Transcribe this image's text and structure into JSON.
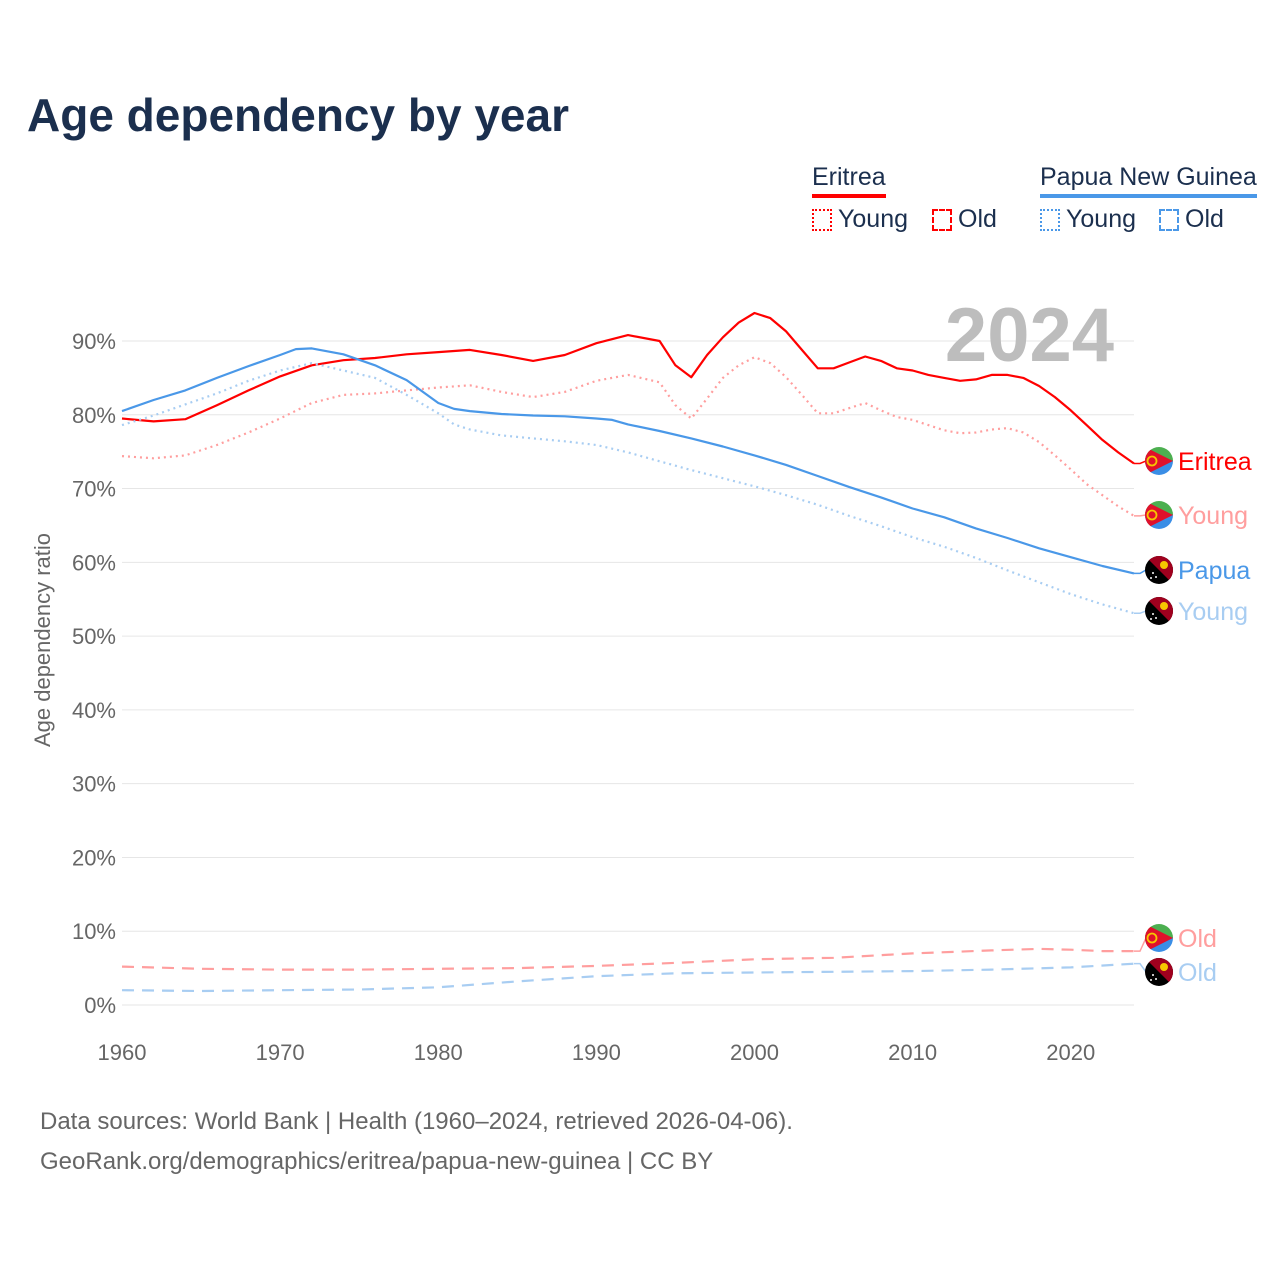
{
  "title": "Age dependency by year",
  "year_label": "2024",
  "legend": {
    "groups": [
      {
        "name": "Eritrea",
        "color": "#ff0000",
        "items": [
          "Young",
          "Old"
        ]
      },
      {
        "name": "Papua New Guinea",
        "color": "#4a98e8",
        "items": [
          "Young",
          "Old"
        ]
      }
    ]
  },
  "footer": {
    "line1": "Data sources: World Bank | Health (1960–2024, retrieved 2026-04-06).",
    "line2": "GeoRank.org/demographics/eritrea/papua-new-guinea | CC BY"
  },
  "chart_data": {
    "type": "line",
    "title": "Age dependency by year",
    "ylabel": "Age dependency ratio",
    "xlabel": "",
    "xlim": [
      1960,
      2024
    ],
    "ylim": [
      0,
      90
    ],
    "xticks": [
      "1960",
      "1970",
      "1980",
      "1990",
      "2000",
      "2010",
      "2020"
    ],
    "yticks": [
      "0%",
      "10%",
      "20%",
      "30%",
      "40%",
      "50%",
      "60%",
      "70%",
      "80%",
      "90%"
    ],
    "grid": true,
    "legend_position": "top-right",
    "series": [
      {
        "name": "Eritrea",
        "label": "Eritrea",
        "color": "#ff0000",
        "style": "solid",
        "points": [
          [
            1960,
            79.5
          ],
          [
            1962,
            79.1
          ],
          [
            1964,
            79.4
          ],
          [
            1966,
            81.3
          ],
          [
            1968,
            83.3
          ],
          [
            1970,
            85.2
          ],
          [
            1972,
            86.7
          ],
          [
            1974,
            87.4
          ],
          [
            1976,
            87.7
          ],
          [
            1978,
            88.2
          ],
          [
            1980,
            88.5
          ],
          [
            1982,
            88.8
          ],
          [
            1984,
            88.1
          ],
          [
            1986,
            87.3
          ],
          [
            1988,
            88.1
          ],
          [
            1990,
            89.7
          ],
          [
            1992,
            90.8
          ],
          [
            1994,
            90.0
          ],
          [
            1995,
            86.7
          ],
          [
            1996,
            85.1
          ],
          [
            1997,
            88.1
          ],
          [
            1998,
            90.5
          ],
          [
            1999,
            92.5
          ],
          [
            2000,
            93.8
          ],
          [
            2001,
            93.1
          ],
          [
            2002,
            91.3
          ],
          [
            2003,
            88.8
          ],
          [
            2004,
            86.3
          ],
          [
            2005,
            86.3
          ],
          [
            2006,
            87.1
          ],
          [
            2007,
            87.9
          ],
          [
            2008,
            87.3
          ],
          [
            2009,
            86.3
          ],
          [
            2010,
            86.0
          ],
          [
            2011,
            85.4
          ],
          [
            2012,
            85.0
          ],
          [
            2013,
            84.6
          ],
          [
            2014,
            84.8
          ],
          [
            2015,
            85.4
          ],
          [
            2016,
            85.4
          ],
          [
            2017,
            85.0
          ],
          [
            2018,
            83.9
          ],
          [
            2019,
            82.4
          ],
          [
            2020,
            80.6
          ],
          [
            2021,
            78.6
          ],
          [
            2022,
            76.6
          ],
          [
            2023,
            74.9
          ],
          [
            2024,
            73.4
          ]
        ]
      },
      {
        "name": "Eritrea Young",
        "label": "Young",
        "color": "#ff9e9e",
        "style": "dotted",
        "points": [
          [
            1960,
            74.4
          ],
          [
            1962,
            74.1
          ],
          [
            1964,
            74.5
          ],
          [
            1966,
            75.9
          ],
          [
            1968,
            77.6
          ],
          [
            1970,
            79.5
          ],
          [
            1972,
            81.6
          ],
          [
            1974,
            82.7
          ],
          [
            1976,
            82.9
          ],
          [
            1978,
            83.3
          ],
          [
            1980,
            83.7
          ],
          [
            1982,
            84.0
          ],
          [
            1984,
            83.1
          ],
          [
            1986,
            82.4
          ],
          [
            1988,
            83.1
          ],
          [
            1990,
            84.6
          ],
          [
            1992,
            85.4
          ],
          [
            1994,
            84.4
          ],
          [
            1995,
            81.3
          ],
          [
            1996,
            79.5
          ],
          [
            1997,
            82.2
          ],
          [
            1998,
            85.0
          ],
          [
            1999,
            86.7
          ],
          [
            2000,
            87.8
          ],
          [
            2001,
            87.0
          ],
          [
            2002,
            85.1
          ],
          [
            2003,
            82.7
          ],
          [
            2004,
            80.2
          ],
          [
            2005,
            80.2
          ],
          [
            2006,
            80.9
          ],
          [
            2007,
            81.6
          ],
          [
            2008,
            80.6
          ],
          [
            2009,
            79.7
          ],
          [
            2010,
            79.3
          ],
          [
            2011,
            78.6
          ],
          [
            2012,
            77.9
          ],
          [
            2013,
            77.5
          ],
          [
            2014,
            77.6
          ],
          [
            2015,
            78.0
          ],
          [
            2016,
            78.2
          ],
          [
            2017,
            77.6
          ],
          [
            2018,
            76.3
          ],
          [
            2019,
            74.5
          ],
          [
            2020,
            72.6
          ],
          [
            2021,
            70.6
          ],
          [
            2022,
            69.1
          ],
          [
            2023,
            67.6
          ],
          [
            2024,
            66.3
          ]
        ]
      },
      {
        "name": "Papua New Guinea",
        "label": "Papua",
        "color": "#4a98e8",
        "style": "solid",
        "points": [
          [
            1960,
            80.5
          ],
          [
            1962,
            82.0
          ],
          [
            1964,
            83.3
          ],
          [
            1966,
            85.0
          ],
          [
            1968,
            86.6
          ],
          [
            1970,
            88.1
          ],
          [
            1971,
            88.9
          ],
          [
            1972,
            89.0
          ],
          [
            1974,
            88.2
          ],
          [
            1976,
            86.7
          ],
          [
            1978,
            84.7
          ],
          [
            1980,
            81.6
          ],
          [
            1981,
            80.8
          ],
          [
            1982,
            80.5
          ],
          [
            1984,
            80.1
          ],
          [
            1986,
            79.9
          ],
          [
            1988,
            79.8
          ],
          [
            1990,
            79.5
          ],
          [
            1991,
            79.3
          ],
          [
            1992,
            78.7
          ],
          [
            1994,
            77.8
          ],
          [
            1996,
            76.8
          ],
          [
            1998,
            75.7
          ],
          [
            2000,
            74.5
          ],
          [
            2002,
            73.2
          ],
          [
            2004,
            71.7
          ],
          [
            2006,
            70.2
          ],
          [
            2008,
            68.8
          ],
          [
            2010,
            67.3
          ],
          [
            2012,
            66.1
          ],
          [
            2014,
            64.6
          ],
          [
            2016,
            63.3
          ],
          [
            2018,
            61.9
          ],
          [
            2020,
            60.7
          ],
          [
            2022,
            59.5
          ],
          [
            2024,
            58.5
          ]
        ]
      },
      {
        "name": "Papua New Guinea Young",
        "label": "Young",
        "color": "#a8cdf2",
        "style": "dotted",
        "points": [
          [
            1960,
            78.6
          ],
          [
            1962,
            79.9
          ],
          [
            1964,
            81.4
          ],
          [
            1966,
            82.9
          ],
          [
            1968,
            84.6
          ],
          [
            1970,
            86.0
          ],
          [
            1972,
            87.0
          ],
          [
            1974,
            86.0
          ],
          [
            1976,
            85.0
          ],
          [
            1978,
            82.7
          ],
          [
            1980,
            80.2
          ],
          [
            1981,
            78.7
          ],
          [
            1982,
            78.0
          ],
          [
            1984,
            77.2
          ],
          [
            1986,
            76.8
          ],
          [
            1988,
            76.4
          ],
          [
            1990,
            75.9
          ],
          [
            1992,
            74.9
          ],
          [
            1994,
            73.7
          ],
          [
            1996,
            72.5
          ],
          [
            1998,
            71.4
          ],
          [
            2000,
            70.3
          ],
          [
            2002,
            69.1
          ],
          [
            2004,
            67.8
          ],
          [
            2006,
            66.3
          ],
          [
            2008,
            64.9
          ],
          [
            2010,
            63.4
          ],
          [
            2012,
            62.1
          ],
          [
            2014,
            60.6
          ],
          [
            2016,
            58.9
          ],
          [
            2018,
            57.3
          ],
          [
            2020,
            55.7
          ],
          [
            2022,
            54.3
          ],
          [
            2024,
            53.1
          ]
        ]
      },
      {
        "name": "Eritrea Old",
        "label": "Old",
        "color": "#ff9e9e",
        "style": "dashed",
        "points": [
          [
            1960,
            5.2
          ],
          [
            1965,
            4.9
          ],
          [
            1970,
            4.8
          ],
          [
            1975,
            4.8
          ],
          [
            1980,
            4.9
          ],
          [
            1985,
            5.0
          ],
          [
            1990,
            5.3
          ],
          [
            1995,
            5.7
          ],
          [
            2000,
            6.2
          ],
          [
            2005,
            6.4
          ],
          [
            2010,
            7.0
          ],
          [
            2015,
            7.4
          ],
          [
            2018,
            7.6
          ],
          [
            2020,
            7.5
          ],
          [
            2022,
            7.3
          ],
          [
            2024,
            7.3
          ]
        ]
      },
      {
        "name": "Papua New Guinea Old",
        "label": "Old",
        "color": "#a8cdf2",
        "style": "dashed",
        "points": [
          [
            1960,
            2.0
          ],
          [
            1965,
            1.9
          ],
          [
            1970,
            2.0
          ],
          [
            1975,
            2.1
          ],
          [
            1980,
            2.4
          ],
          [
            1985,
            3.2
          ],
          [
            1990,
            3.9
          ],
          [
            1995,
            4.3
          ],
          [
            2000,
            4.4
          ],
          [
            2005,
            4.5
          ],
          [
            2010,
            4.6
          ],
          [
            2015,
            4.8
          ],
          [
            2020,
            5.1
          ],
          [
            2024,
            5.6
          ]
        ]
      }
    ]
  }
}
